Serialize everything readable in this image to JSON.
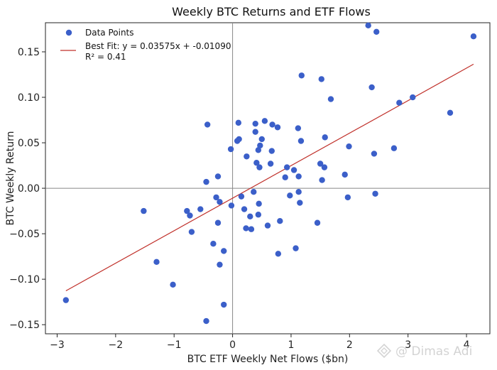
{
  "chart_data": {
    "type": "scatter",
    "title": "Weekly BTC Returns and ETF Flows",
    "xlabel": "BTC ETF Weekly Net Flows ($bn)",
    "ylabel": "BTC Weekly Return",
    "xlim": [
      -3.2,
      4.4
    ],
    "ylim": [
      -0.16,
      0.182
    ],
    "xticks": [
      -3,
      -2,
      -1,
      0,
      1,
      2,
      3,
      4
    ],
    "yticks": [
      -0.15,
      -0.1,
      -0.05,
      0.0,
      0.05,
      0.1,
      0.15
    ],
    "xtick_labels": [
      "−3",
      "−2",
      "−1",
      "0",
      "1",
      "2",
      "3",
      "4"
    ],
    "ytick_labels": [
      "−0.15",
      "−0.10",
      "−0.05",
      "0.00",
      "0.05",
      "0.10",
      "0.15"
    ],
    "legend_position": "top-left",
    "grid": false,
    "reference_lines": {
      "x": 0,
      "y": 0
    },
    "series": [
      {
        "name": "Data Points",
        "color": "#3b5fc9",
        "points": [
          [
            -2.85,
            -0.123
          ],
          [
            -1.52,
            -0.025
          ],
          [
            -1.3,
            -0.081
          ],
          [
            -1.02,
            -0.106
          ],
          [
            -0.78,
            -0.025
          ],
          [
            -0.73,
            -0.03
          ],
          [
            -0.7,
            -0.048
          ],
          [
            -0.55,
            -0.023
          ],
          [
            -0.45,
            0.007
          ],
          [
            -0.43,
            0.07
          ],
          [
            -0.45,
            -0.146
          ],
          [
            -0.33,
            -0.061
          ],
          [
            -0.28,
            -0.01
          ],
          [
            -0.25,
            0.013
          ],
          [
            -0.25,
            -0.038
          ],
          [
            -0.22,
            -0.015
          ],
          [
            -0.22,
            -0.084
          ],
          [
            -0.15,
            -0.069
          ],
          [
            -0.15,
            -0.128
          ],
          [
            -0.03,
            0.043
          ],
          [
            -0.02,
            -0.019
          ],
          [
            0.08,
            0.052
          ],
          [
            0.1,
            0.072
          ],
          [
            0.11,
            0.054
          ],
          [
            0.15,
            -0.009
          ],
          [
            0.2,
            -0.023
          ],
          [
            0.23,
            -0.044
          ],
          [
            0.24,
            0.035
          ],
          [
            0.3,
            -0.031
          ],
          [
            0.32,
            -0.045
          ],
          [
            0.36,
            -0.004
          ],
          [
            0.39,
            0.062
          ],
          [
            0.39,
            0.071
          ],
          [
            0.41,
            0.028
          ],
          [
            0.44,
            0.042
          ],
          [
            0.44,
            -0.029
          ],
          [
            0.45,
            -0.017
          ],
          [
            0.46,
            0.023
          ],
          [
            0.47,
            0.047
          ],
          [
            0.5,
            0.054
          ],
          [
            0.55,
            0.074
          ],
          [
            0.6,
            -0.041
          ],
          [
            0.65,
            0.027
          ],
          [
            0.67,
            0.041
          ],
          [
            0.68,
            0.07
          ],
          [
            0.77,
            0.067
          ],
          [
            0.78,
            -0.072
          ],
          [
            0.81,
            -0.036
          ],
          [
            0.9,
            0.012
          ],
          [
            0.93,
            0.023
          ],
          [
            0.98,
            -0.008
          ],
          [
            1.05,
            0.02
          ],
          [
            1.08,
            -0.066
          ],
          [
            1.12,
            0.066
          ],
          [
            1.13,
            -0.004
          ],
          [
            1.13,
            0.013
          ],
          [
            1.15,
            -0.016
          ],
          [
            1.17,
            0.052
          ],
          [
            1.18,
            0.124
          ],
          [
            1.45,
            -0.038
          ],
          [
            1.5,
            0.027
          ],
          [
            1.52,
            0.12
          ],
          [
            1.53,
            0.009
          ],
          [
            1.57,
            0.023
          ],
          [
            1.58,
            0.056
          ],
          [
            1.68,
            0.098
          ],
          [
            1.92,
            0.015
          ],
          [
            1.97,
            -0.01
          ],
          [
            1.99,
            0.046
          ],
          [
            2.32,
            0.179
          ],
          [
            2.38,
            0.111
          ],
          [
            2.42,
            0.038
          ],
          [
            2.44,
            -0.006
          ],
          [
            2.46,
            0.172
          ],
          [
            2.76,
            0.044
          ],
          [
            2.85,
            0.094
          ],
          [
            3.08,
            0.1
          ],
          [
            3.72,
            0.083
          ],
          [
            4.12,
            0.167
          ]
        ]
      },
      {
        "name": "Best Fit: y = 0.03575x + -0.01090",
        "color": "#c0302a",
        "type": "line",
        "slope": 0.03575,
        "intercept": -0.0109,
        "x_range": [
          -2.85,
          4.12
        ]
      }
    ],
    "annotation": "R² = 0.41"
  },
  "watermark": "@ Dimas Adi"
}
